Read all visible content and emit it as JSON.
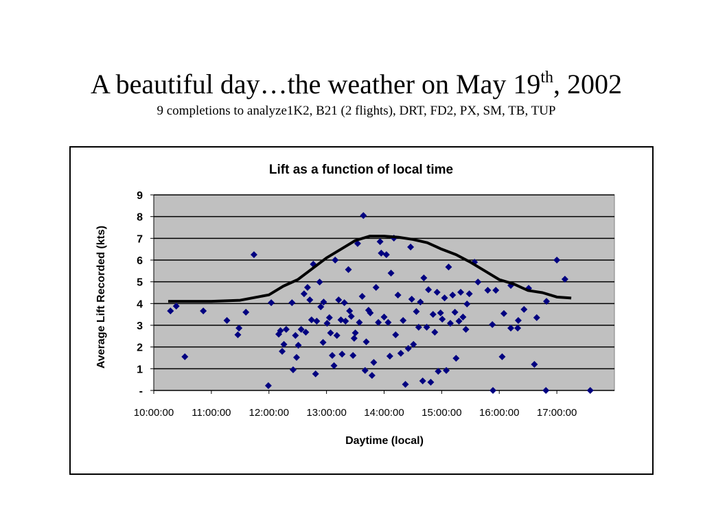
{
  "header": {
    "title": "A beautiful day…the weather on May 19",
    "title_superscript": "th",
    "title_suffix": ", 2002",
    "subtitle": "9 completions to analyze1K2, B21 (2 flights), DRT, FD2, PX, SM, TB, TUP"
  },
  "chart_data": {
    "type": "scatter",
    "title": "Lift as a function of local time",
    "x_label": "Daytime (local)",
    "y_label": "Average Lift Recorded (kts)",
    "xlim": [
      10,
      18
    ],
    "ylim": [
      0,
      9
    ],
    "xticks": [
      {
        "value": 10,
        "label": "10:00:00"
      },
      {
        "value": 11,
        "label": "11:00:00"
      },
      {
        "value": 12,
        "label": "12:00:00"
      },
      {
        "value": 13,
        "label": "13:00:00"
      },
      {
        "value": 14,
        "label": "14:00:00"
      },
      {
        "value": 15,
        "label": "15:00:00"
      },
      {
        "value": 16,
        "label": "16:00:00"
      },
      {
        "value": 17,
        "label": "17:00:00"
      }
    ],
    "yticks": [
      {
        "value": 0,
        "label": "-"
      },
      1,
      2,
      3,
      4,
      5,
      6,
      7,
      8,
      9
    ],
    "grid": true,
    "background": "#c0c0c0",
    "series": [
      {
        "kind": "points",
        "color": "#000080",
        "x": [
          10.29,
          10.39,
          10.54,
          10.86,
          11.27,
          11.46,
          11.48,
          11.6,
          11.74,
          11.99,
          12.04,
          12.17,
          12.2,
          12.23,
          12.26,
          12.3,
          12.4,
          12.42,
          12.46,
          12.48,
          12.51,
          12.56,
          12.61,
          12.64,
          12.67,
          12.71,
          12.74,
          12.77,
          12.81,
          12.83,
          12.88,
          12.9,
          12.94,
          12.95,
          13.01,
          13.05,
          13.07,
          13.1,
          13.13,
          13.15,
          13.18,
          13.21,
          13.25,
          13.27,
          13.31,
          13.33,
          13.38,
          13.4,
          13.43,
          13.46,
          13.48,
          13.5,
          13.54,
          13.57,
          13.62,
          13.64,
          13.67,
          13.69,
          13.73,
          13.76,
          13.79,
          13.82,
          13.86,
          13.9,
          13.93,
          13.95,
          14.0,
          14.04,
          14.07,
          14.1,
          14.12,
          14.17,
          14.2,
          14.24,
          14.29,
          14.33,
          14.37,
          14.42,
          14.46,
          14.48,
          14.51,
          14.56,
          14.6,
          14.63,
          14.67,
          14.69,
          14.74,
          14.77,
          14.81,
          14.85,
          14.88,
          14.92,
          14.94,
          14.98,
          15.01,
          15.05,
          15.08,
          15.12,
          15.15,
          15.19,
          15.23,
          15.25,
          15.3,
          15.33,
          15.37,
          15.42,
          15.44,
          15.48,
          15.57,
          15.63,
          15.8,
          15.88,
          15.89,
          15.94,
          16.05,
          16.08,
          16.2,
          16.2,
          16.32,
          16.33,
          16.43,
          16.51,
          16.61,
          16.65,
          16.81,
          16.82,
          17.0,
          17.14,
          17.58
        ],
        "y": [
          3.66,
          3.88,
          1.55,
          3.66,
          3.22,
          2.56,
          2.87,
          3.6,
          6.25,
          0.22,
          4.04,
          2.59,
          2.75,
          1.8,
          2.12,
          2.81,
          4.04,
          0.95,
          2.53,
          1.52,
          2.08,
          2.81,
          4.45,
          2.68,
          4.74,
          4.17,
          3.25,
          5.81,
          0.76,
          3.19,
          4.99,
          3.85,
          2.21,
          4.07,
          3.09,
          3.35,
          2.65,
          1.61,
          1.14,
          6.0,
          2.53,
          4.17,
          3.25,
          1.67,
          4.04,
          3.19,
          5.56,
          3.66,
          3.41,
          1.61,
          2.4,
          2.65,
          6.76,
          3.13,
          4.33,
          8.05,
          0.92,
          2.24,
          3.69,
          3.57,
          0.69,
          1.29,
          4.74,
          3.13,
          6.85,
          6.32,
          3.38,
          6.25,
          3.13,
          1.58,
          5.4,
          7.01,
          2.56,
          4.39,
          1.71,
          3.22,
          0.28,
          1.93,
          6.6,
          4.2,
          2.12,
          3.63,
          2.91,
          4.07,
          0.44,
          5.18,
          2.91,
          4.64,
          0.38,
          3.5,
          2.68,
          4.52,
          0.88,
          3.57,
          3.28,
          4.26,
          0.92,
          5.68,
          3.09,
          4.39,
          3.6,
          1.48,
          3.19,
          4.52,
          3.38,
          2.81,
          3.98,
          4.45,
          5.9,
          4.99,
          4.61,
          3.03,
          0,
          4.61,
          1.55,
          3.54,
          4.83,
          2.87,
          2.87,
          3.22,
          3.73,
          4.7,
          1.2,
          3.35,
          0,
          4.1,
          6.0,
          5.12,
          0
        ]
      },
      {
        "kind": "line",
        "color": "#000000",
        "x": [
          10.25,
          11,
          11.5,
          12,
          12.25,
          12.5,
          12.75,
          13,
          13.25,
          13.5,
          13.75,
          14,
          14.25,
          14.5,
          14.75,
          15,
          15.25,
          15.5,
          15.75,
          16,
          16.25,
          16.5,
          16.75,
          17,
          17.25
        ],
        "y": [
          4.1,
          4.1,
          4.15,
          4.4,
          4.8,
          5.1,
          5.6,
          6.1,
          6.5,
          6.9,
          7.1,
          7.1,
          7.05,
          6.95,
          6.8,
          6.5,
          6.25,
          5.9,
          5.5,
          5.1,
          4.9,
          4.6,
          4.5,
          4.3,
          4.25
        ]
      }
    ]
  }
}
